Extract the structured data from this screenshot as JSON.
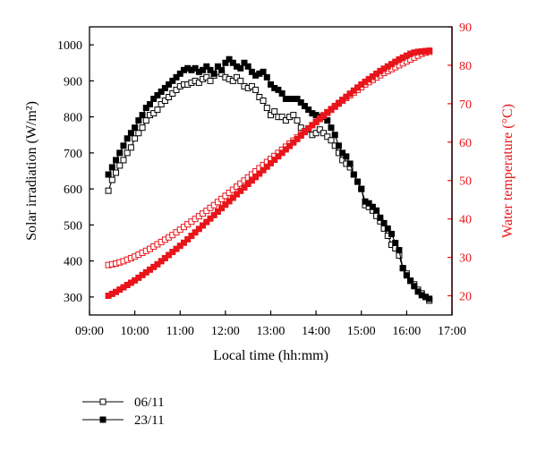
{
  "chart_data": {
    "type": "line",
    "xlabel": "Local time (hh:mm)",
    "ylabel_left": "Solar irradiation (W/m²)",
    "ylabel_right": "Water temperature (°C)",
    "xlim": [
      "09:00",
      "17:00"
    ],
    "x_ticks": [
      "09:00",
      "10:00",
      "11:00",
      "12:00",
      "13:00",
      "14:00",
      "15:00",
      "16:00",
      "17:00"
    ],
    "ylim_left": [
      250,
      1050
    ],
    "y_ticks_left": [
      "300",
      "400",
      "500",
      "600",
      "700",
      "800",
      "900",
      "1000"
    ],
    "ylim_right": [
      15,
      90
    ],
    "y_ticks_right": [
      "20",
      "30",
      "40",
      "50",
      "60",
      "70",
      "80",
      "90"
    ],
    "colors": {
      "irradiation": "#000000",
      "temperature": "#e8151b"
    },
    "legend_position": "bottom-left",
    "series": [
      {
        "name": "06/11",
        "axis": "left",
        "marker": "open-square",
        "x": [
          "09:25",
          "09:30",
          "09:35",
          "09:40",
          "09:45",
          "09:50",
          "09:55",
          "10:00",
          "10:05",
          "10:10",
          "10:15",
          "10:20",
          "10:25",
          "10:30",
          "10:35",
          "10:40",
          "10:45",
          "10:50",
          "10:55",
          "11:00",
          "11:05",
          "11:10",
          "11:15",
          "11:20",
          "11:25",
          "11:30",
          "11:35",
          "11:40",
          "11:45",
          "11:50",
          "11:55",
          "12:00",
          "12:05",
          "12:10",
          "12:15",
          "12:20",
          "12:25",
          "12:30",
          "12:35",
          "12:40",
          "12:45",
          "12:50",
          "12:55",
          "13:00",
          "13:05",
          "13:10",
          "13:15",
          "13:20",
          "13:25",
          "13:30",
          "13:35",
          "13:40",
          "13:45",
          "13:50",
          "13:55",
          "14:00",
          "14:05",
          "14:10",
          "14:15",
          "14:20",
          "14:25",
          "14:30",
          "14:35",
          "14:40",
          "14:45",
          "14:50",
          "14:55",
          "15:00",
          "15:05",
          "15:10",
          "15:15",
          "15:20",
          "15:25",
          "15:30",
          "15:35",
          "15:40",
          "15:45",
          "15:50",
          "15:55",
          "16:00",
          "16:05",
          "16:10",
          "16:15",
          "16:20",
          "16:25",
          "16:30"
        ],
        "y": [
          595,
          625,
          645,
          665,
          680,
          700,
          715,
          740,
          755,
          770,
          790,
          805,
          810,
          820,
          835,
          845,
          855,
          865,
          875,
          885,
          890,
          890,
          895,
          900,
          895,
          905,
          910,
          900,
          915,
          925,
          920,
          910,
          905,
          900,
          910,
          900,
          885,
          880,
          885,
          875,
          855,
          845,
          825,
          805,
          815,
          800,
          800,
          790,
          800,
          805,
          790,
          770,
          760,
          765,
          750,
          755,
          765,
          755,
          745,
          735,
          720,
          700,
          680,
          670,
          660,
          640,
          620,
          600,
          555,
          550,
          540,
          525,
          510,
          490,
          470,
          445,
          435,
          415,
          380,
          365,
          345,
          335,
          320,
          310,
          300,
          290
        ]
      },
      {
        "name": "23/11",
        "axis": "left",
        "marker": "filled-square",
        "x": [
          "09:25",
          "09:30",
          "09:35",
          "09:40",
          "09:45",
          "09:50",
          "09:55",
          "10:00",
          "10:05",
          "10:10",
          "10:15",
          "10:20",
          "10:25",
          "10:30",
          "10:35",
          "10:40",
          "10:45",
          "10:50",
          "10:55",
          "11:00",
          "11:05",
          "11:10",
          "11:15",
          "11:20",
          "11:25",
          "11:30",
          "11:35",
          "11:40",
          "11:45",
          "11:50",
          "11:55",
          "12:00",
          "12:05",
          "12:10",
          "12:15",
          "12:20",
          "12:25",
          "12:30",
          "12:35",
          "12:40",
          "12:45",
          "12:50",
          "12:55",
          "13:00",
          "13:05",
          "13:10",
          "13:15",
          "13:20",
          "13:25",
          "13:30",
          "13:35",
          "13:40",
          "13:45",
          "13:50",
          "13:55",
          "14:00",
          "14:05",
          "14:10",
          "14:15",
          "14:20",
          "14:25",
          "14:30",
          "14:35",
          "14:40",
          "14:45",
          "14:50",
          "14:55",
          "15:00",
          "15:05",
          "15:10",
          "15:15",
          "15:20",
          "15:25",
          "15:30",
          "15:35",
          "15:40",
          "15:45",
          "15:50",
          "15:55",
          "16:00",
          "16:05",
          "16:10",
          "16:15",
          "16:20",
          "16:25",
          "16:30"
        ],
        "y": [
          640,
          660,
          680,
          700,
          720,
          740,
          755,
          770,
          790,
          805,
          825,
          835,
          850,
          860,
          870,
          880,
          890,
          900,
          910,
          920,
          930,
          935,
          930,
          935,
          925,
          930,
          940,
          930,
          920,
          940,
          930,
          950,
          960,
          950,
          940,
          935,
          950,
          940,
          925,
          915,
          920,
          925,
          910,
          890,
          880,
          875,
          865,
          850,
          850,
          850,
          850,
          840,
          830,
          820,
          810,
          805,
          800,
          800,
          790,
          770,
          750,
          720,
          700,
          690,
          670,
          640,
          620,
          600,
          565,
          560,
          550,
          540,
          520,
          505,
          490,
          475,
          450,
          430,
          380,
          360,
          345,
          330,
          315,
          305,
          300,
          295
        ]
      },
      {
        "name": "06/11",
        "axis": "right",
        "marker": "open-square",
        "x": [
          "09:25",
          "09:30",
          "09:35",
          "09:40",
          "09:45",
          "09:50",
          "09:55",
          "10:00",
          "10:05",
          "10:10",
          "10:15",
          "10:20",
          "10:25",
          "10:30",
          "10:35",
          "10:40",
          "10:45",
          "10:50",
          "10:55",
          "11:00",
          "11:05",
          "11:10",
          "11:15",
          "11:20",
          "11:25",
          "11:30",
          "11:35",
          "11:40",
          "11:45",
          "11:50",
          "11:55",
          "12:00",
          "12:05",
          "12:10",
          "12:15",
          "12:20",
          "12:25",
          "12:30",
          "12:35",
          "12:40",
          "12:45",
          "12:50",
          "12:55",
          "13:00",
          "13:05",
          "13:10",
          "13:15",
          "13:20",
          "13:25",
          "13:30",
          "13:35",
          "13:40",
          "13:45",
          "13:50",
          "13:55",
          "14:00",
          "14:05",
          "14:10",
          "14:15",
          "14:20",
          "14:25",
          "14:30",
          "14:35",
          "14:40",
          "14:45",
          "14:50",
          "14:55",
          "15:00",
          "15:05",
          "15:10",
          "15:15",
          "15:20",
          "15:25",
          "15:30",
          "15:35",
          "15:40",
          "15:45",
          "15:50",
          "15:55",
          "16:00",
          "16:05",
          "16:10",
          "16:15",
          "16:20",
          "16:25",
          "16:30"
        ],
        "y": [
          28.0,
          28.2,
          28.4,
          28.7,
          29.0,
          29.4,
          29.8,
          30.2,
          30.7,
          31.2,
          31.7,
          32.2,
          32.8,
          33.4,
          34.0,
          34.6,
          35.2,
          35.8,
          36.5,
          37.2,
          37.9,
          38.6,
          39.3,
          40.0,
          40.7,
          41.4,
          42.1,
          42.9,
          43.6,
          44.4,
          45.2,
          46.0,
          46.8,
          47.6,
          48.4,
          49.2,
          50.0,
          50.8,
          51.6,
          52.4,
          53.2,
          54.0,
          54.8,
          55.6,
          56.4,
          57.2,
          58.0,
          58.8,
          59.6,
          60.4,
          61.2,
          62.0,
          62.8,
          63.6,
          64.4,
          65.2,
          66.0,
          66.8,
          67.6,
          68.4,
          69.2,
          70.0,
          70.8,
          71.5,
          72.2,
          72.9,
          73.6,
          74.3,
          75.0,
          75.6,
          76.2,
          76.8,
          77.4,
          78.0,
          78.5,
          79.0,
          79.5,
          80.0,
          80.5,
          81.0,
          81.5,
          82.0,
          82.5,
          83.0,
          83.3,
          83.5
        ]
      },
      {
        "name": "23/11",
        "axis": "right",
        "marker": "filled-square",
        "x": [
          "09:25",
          "09:30",
          "09:35",
          "09:40",
          "09:45",
          "09:50",
          "09:55",
          "10:00",
          "10:05",
          "10:10",
          "10:15",
          "10:20",
          "10:25",
          "10:30",
          "10:35",
          "10:40",
          "10:45",
          "10:50",
          "10:55",
          "11:00",
          "11:05",
          "11:10",
          "11:15",
          "11:20",
          "11:25",
          "11:30",
          "11:35",
          "11:40",
          "11:45",
          "11:50",
          "11:55",
          "12:00",
          "12:05",
          "12:10",
          "12:15",
          "12:20",
          "12:25",
          "12:30",
          "12:35",
          "12:40",
          "12:45",
          "12:50",
          "12:55",
          "13:00",
          "13:05",
          "13:10",
          "13:15",
          "13:20",
          "13:25",
          "13:30",
          "13:35",
          "13:40",
          "13:45",
          "13:50",
          "13:55",
          "14:00",
          "14:05",
          "14:10",
          "14:15",
          "14:20",
          "14:25",
          "14:30",
          "14:35",
          "14:40",
          "14:45",
          "14:50",
          "14:55",
          "15:00",
          "15:05",
          "15:10",
          "15:15",
          "15:20",
          "15:25",
          "15:30",
          "15:35",
          "15:40",
          "15:45",
          "15:50",
          "15:55",
          "16:00",
          "16:05",
          "16:10",
          "16:15",
          "16:20",
          "16:25",
          "16:30"
        ],
        "y": [
          20.0,
          20.5,
          21.0,
          21.6,
          22.2,
          22.8,
          23.4,
          24.0,
          24.7,
          25.4,
          26.1,
          26.8,
          27.5,
          28.2,
          29.0,
          29.8,
          30.6,
          31.4,
          32.2,
          33.0,
          33.8,
          34.7,
          35.6,
          36.5,
          37.4,
          38.3,
          39.2,
          40.1,
          41.0,
          41.9,
          42.8,
          43.7,
          44.6,
          45.5,
          46.4,
          47.3,
          48.2,
          49.1,
          50.0,
          50.9,
          51.8,
          52.7,
          53.6,
          54.5,
          55.4,
          56.3,
          57.2,
          58.1,
          59.0,
          59.9,
          60.8,
          61.7,
          62.6,
          63.5,
          64.4,
          65.3,
          66.2,
          67.0,
          67.8,
          68.6,
          69.4,
          70.2,
          71.0,
          71.8,
          72.6,
          73.4,
          74.2,
          75.0,
          75.7,
          76.4,
          77.1,
          77.8,
          78.5,
          79.1,
          79.7,
          80.3,
          80.9,
          81.5,
          82.0,
          82.5,
          83.0,
          83.3,
          83.5,
          83.6,
          83.7,
          83.8
        ]
      }
    ]
  }
}
